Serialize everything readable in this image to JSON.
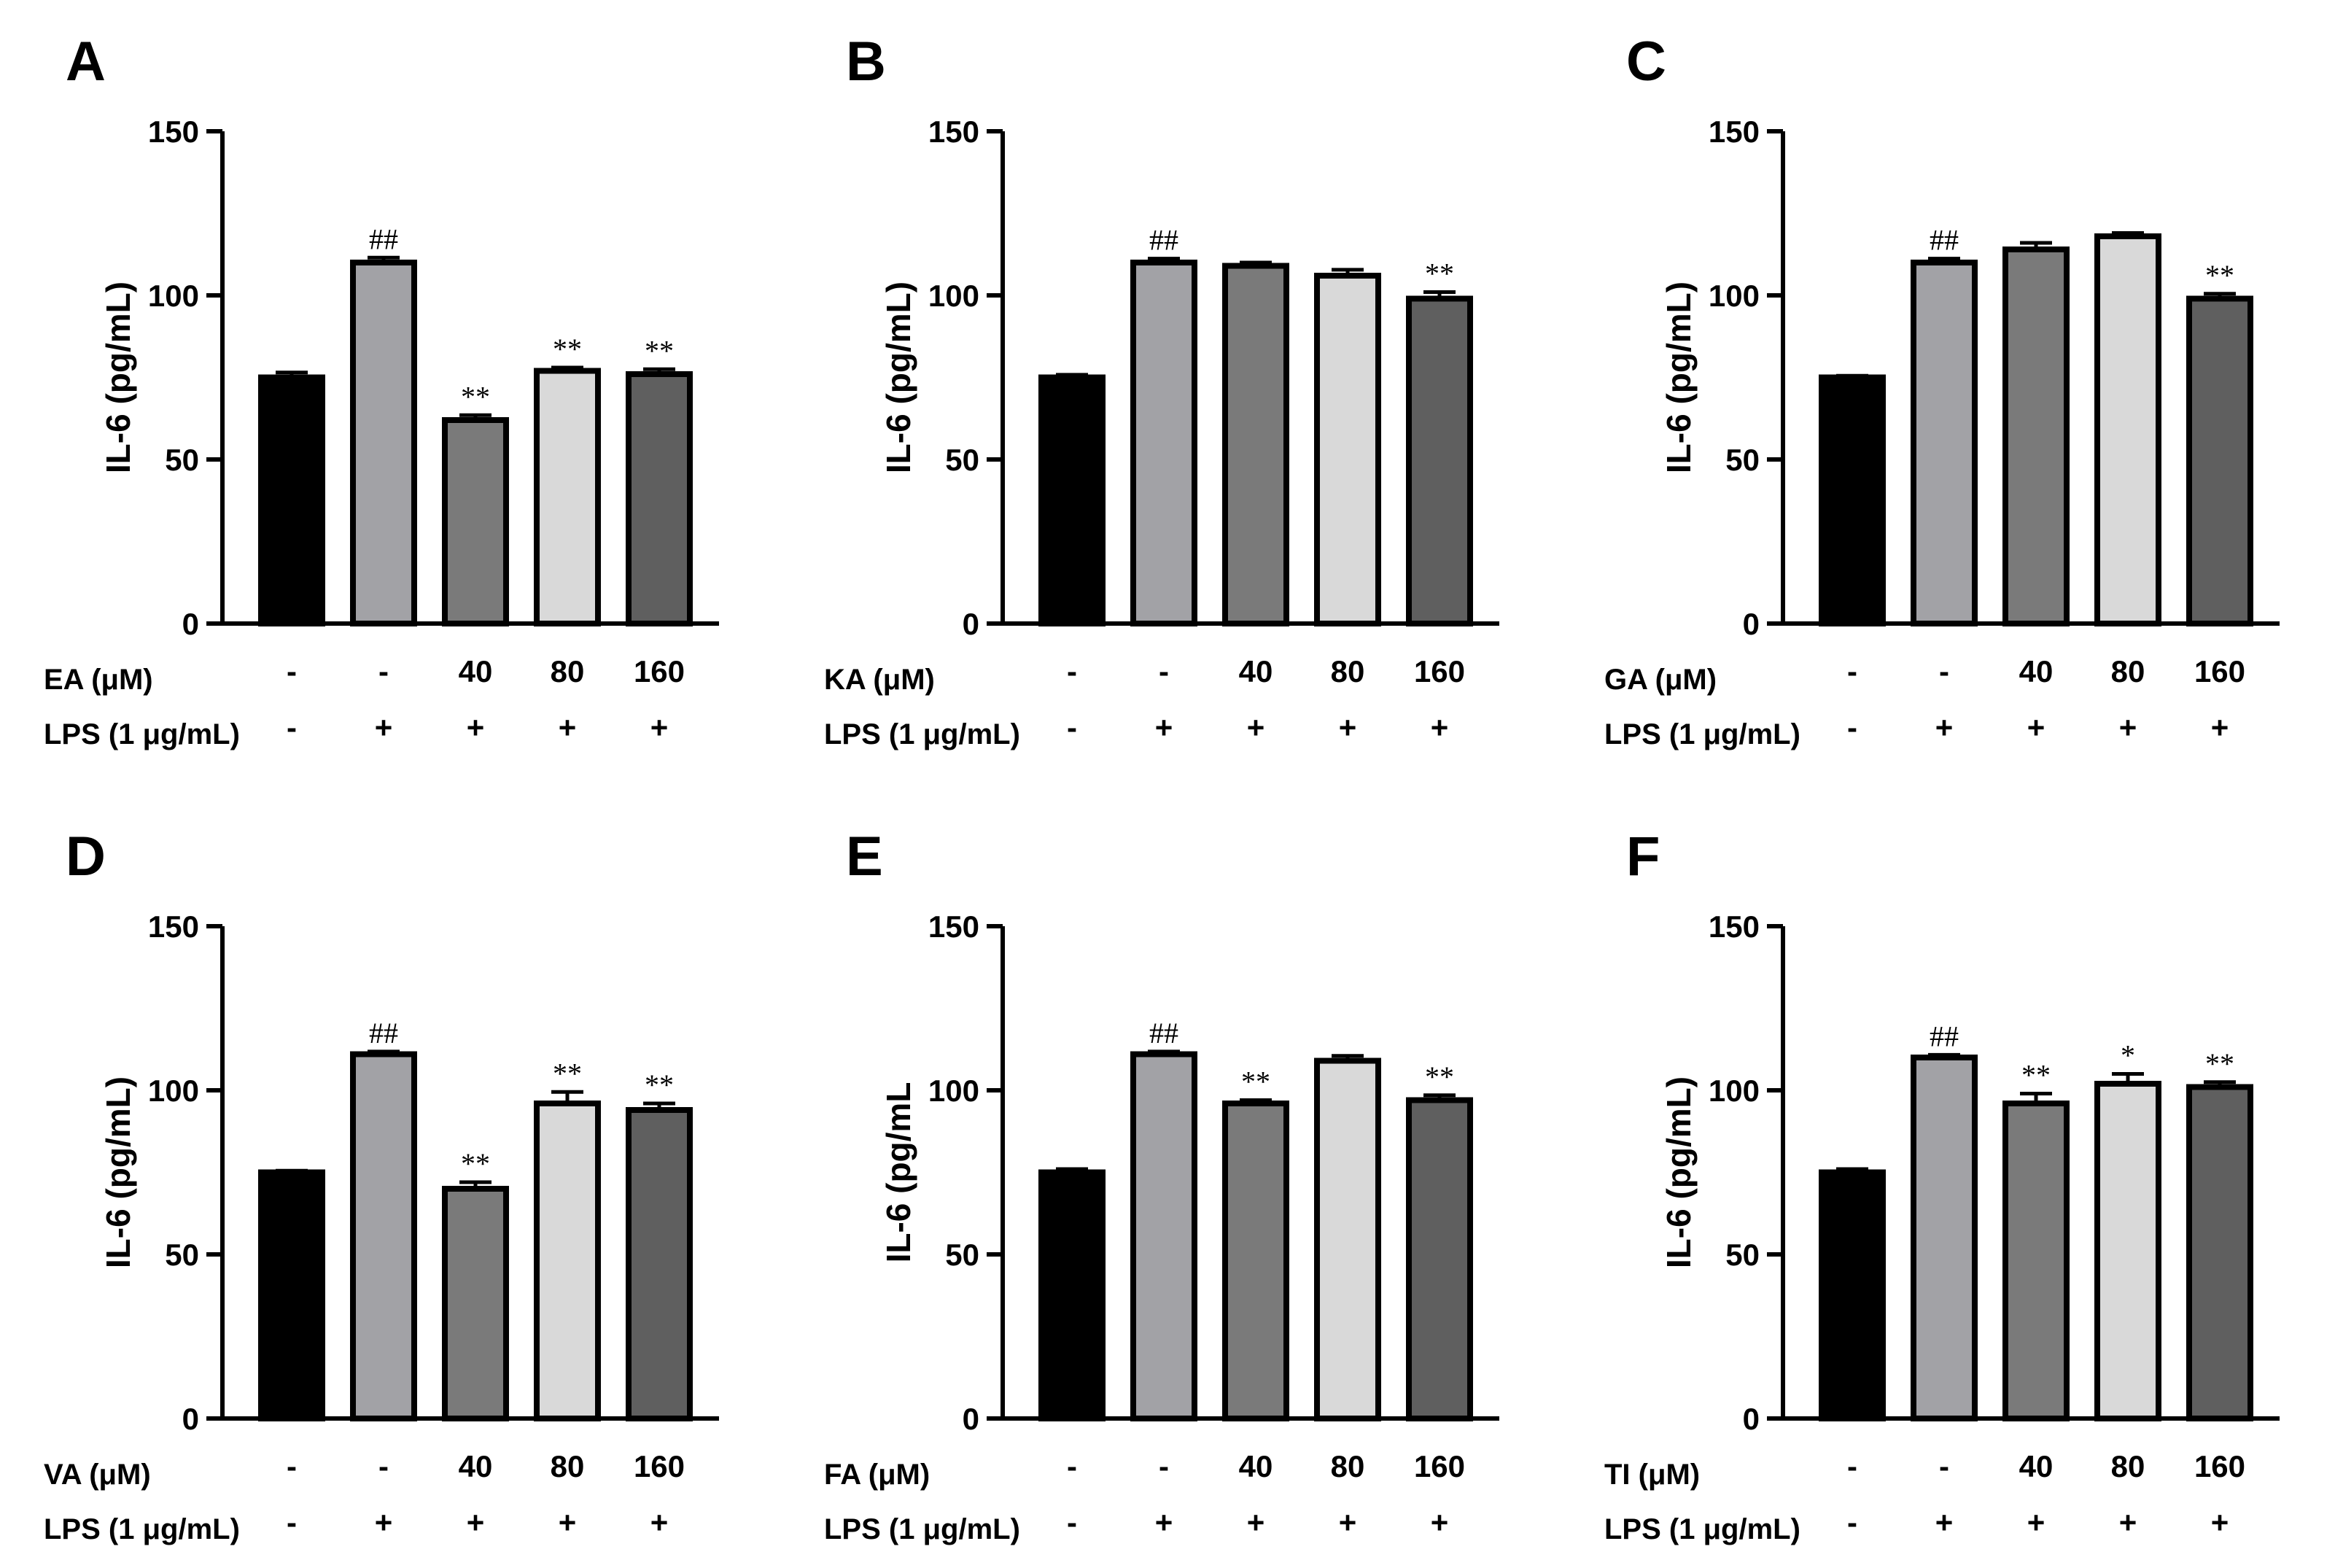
{
  "figure": {
    "bar_colors": [
      "#000000",
      "#a2a2a6",
      "#7a7a7a",
      "#d9d9d9",
      "#5f5f5f"
    ]
  },
  "chart_data": [
    {
      "type": "bar",
      "panel": "A",
      "ylabel": "IL-6 (pg/mL)",
      "ylim": [
        0,
        150
      ],
      "yticks": [
        0,
        50,
        100,
        150
      ],
      "treatment_label": "EA (μM)",
      "treatment_values": [
        "-",
        "-",
        "40",
        "80",
        "160"
      ],
      "lps_label": "LPS (1 μg/mL)",
      "lps_values": [
        "-",
        "+",
        "+",
        "+",
        "+"
      ],
      "values": [
        75,
        110,
        62,
        77,
        76
      ],
      "errors": [
        1.5,
        1.5,
        1.5,
        1,
        1.5
      ],
      "significance": [
        "",
        "##",
        "**",
        "**",
        "**"
      ]
    },
    {
      "type": "bar",
      "panel": "B",
      "ylabel": "IL-6 (pg/mL)",
      "ylim": [
        0,
        150
      ],
      "yticks": [
        0,
        50,
        100,
        150
      ],
      "treatment_label": "KA (μM)",
      "treatment_values": [
        "-",
        "-",
        "40",
        "80",
        "160"
      ],
      "lps_label": "LPS (1 μg/mL)",
      "lps_values": [
        "-",
        "+",
        "+",
        "+",
        "+"
      ],
      "values": [
        75,
        110,
        109,
        106,
        99
      ],
      "errors": [
        0.8,
        1.2,
        1,
        1.8,
        2
      ],
      "significance": [
        "",
        "##",
        "",
        "",
        "**"
      ]
    },
    {
      "type": "bar",
      "panel": "C",
      "ylabel": "IL-6 (pg/mL)",
      "ylim": [
        0,
        150
      ],
      "yticks": [
        0,
        50,
        100,
        150
      ],
      "treatment_label": "GA (μM)",
      "treatment_values": [
        "-",
        "-",
        "40",
        "80",
        "160"
      ],
      "lps_label": "LPS (1 μg/mL)",
      "lps_values": [
        "-",
        "+",
        "+",
        "+",
        "+"
      ],
      "values": [
        75,
        110,
        114,
        118,
        99
      ],
      "errors": [
        0.5,
        1.2,
        2,
        1,
        1.5
      ],
      "significance": [
        "",
        "##",
        "",
        "",
        "**"
      ]
    },
    {
      "type": "bar",
      "panel": "D",
      "ylabel": "IL-6 (pg/mL)",
      "ylim": [
        0,
        150
      ],
      "yticks": [
        0,
        50,
        100,
        150
      ],
      "treatment_label": "VA (μM)",
      "treatment_values": [
        "-",
        "-",
        "40",
        "80",
        "160"
      ],
      "lps_label": "LPS (1 μg/mL)",
      "lps_values": [
        "-",
        "+",
        "+",
        "+",
        "+"
      ],
      "values": [
        75,
        111,
        70,
        96,
        94
      ],
      "errors": [
        0.5,
        0.8,
        2,
        3.5,
        2
      ],
      "significance": [
        "",
        "##",
        "**",
        "**",
        "**"
      ]
    },
    {
      "type": "bar",
      "panel": "E",
      "ylabel": "IL-6 (pg/mL",
      "ylim": [
        0,
        150
      ],
      "yticks": [
        0,
        50,
        100,
        150
      ],
      "treatment_label": "FA (μM)",
      "treatment_values": [
        "-",
        "-",
        "40",
        "80",
        "160"
      ],
      "lps_label": "LPS (1 μg/mL)",
      "lps_values": [
        "-",
        "+",
        "+",
        "+",
        "+"
      ],
      "values": [
        75,
        111,
        96,
        109,
        97
      ],
      "errors": [
        1,
        0.8,
        1,
        1.5,
        1.5
      ],
      "significance": [
        "",
        "##",
        "**",
        "",
        "**"
      ]
    },
    {
      "type": "bar",
      "panel": "F",
      "ylabel": "IL-6 (pg/mL)",
      "ylim": [
        0,
        150
      ],
      "yticks": [
        0,
        50,
        100,
        150
      ],
      "treatment_label": "TI (μM)",
      "treatment_values": [
        "-",
        "-",
        "40",
        "80",
        "160"
      ],
      "lps_label": "LPS (1 μg/mL)",
      "lps_values": [
        "-",
        "+",
        "+",
        "+",
        "+"
      ],
      "values": [
        75,
        110,
        96,
        102,
        101
      ],
      "errors": [
        1,
        0.8,
        3,
        3,
        1.5
      ],
      "significance": [
        "",
        "##",
        "**",
        "*",
        "**"
      ]
    }
  ]
}
